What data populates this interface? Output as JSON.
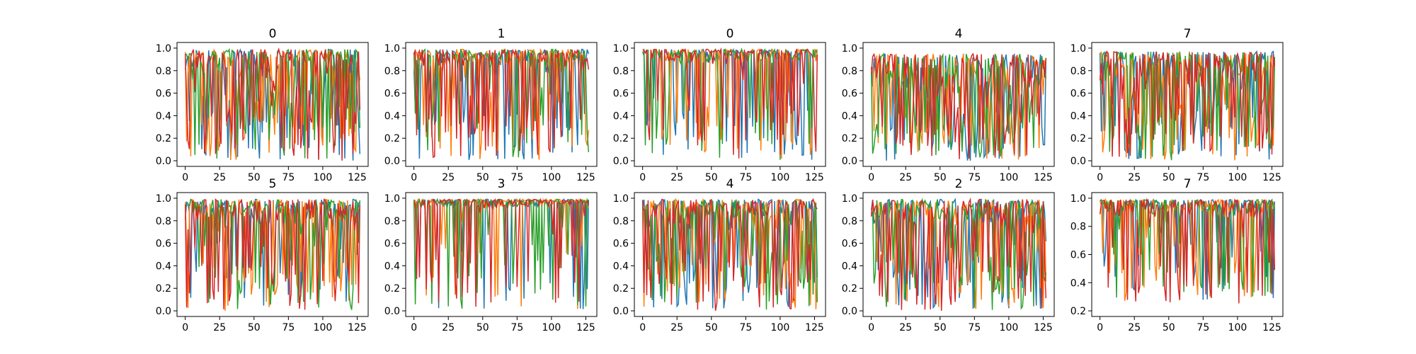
{
  "colors": {
    "series": [
      "#1f77b4",
      "#ff7f0e",
      "#2ca02c",
      "#d62728"
    ],
    "axes": "#000000",
    "background": "#ffffff"
  },
  "chart_data": [
    {
      "type": "line",
      "title": "0",
      "xlabel": "",
      "ylabel": "",
      "xlim": [
        -6,
        133
      ],
      "ylim": [
        -0.05,
        1.05
      ],
      "xticks": [
        0,
        25,
        50,
        75,
        100,
        125
      ],
      "yticks": [
        0.0,
        0.2,
        0.4,
        0.6,
        0.8,
        1.0
      ],
      "ytick_labels": [
        "0.0",
        "0.2",
        "0.4",
        "0.6",
        "0.8",
        "1.0"
      ],
      "grid": false,
      "legend": "none",
      "n_points": 128,
      "series_count": 4,
      "profile": {
        "low_min": 0.0,
        "high_level": 0.99,
        "dip_rate": 0.38,
        "noise": 0.35
      }
    },
    {
      "type": "line",
      "title": "1",
      "xlabel": "",
      "ylabel": "",
      "xlim": [
        -6,
        133
      ],
      "ylim": [
        -0.05,
        1.05
      ],
      "xticks": [
        0,
        25,
        50,
        75,
        100,
        125
      ],
      "yticks": [
        0.0,
        0.2,
        0.4,
        0.6,
        0.8,
        1.0
      ],
      "ytick_labels": [
        "0.0",
        "0.2",
        "0.4",
        "0.6",
        "0.8",
        "1.0"
      ],
      "grid": false,
      "legend": "none",
      "n_points": 128,
      "series_count": 4,
      "profile": {
        "low_min": 0.0,
        "high_level": 0.99,
        "dip_rate": 0.32,
        "noise": 0.25
      }
    },
    {
      "type": "line",
      "title": "0",
      "xlabel": "",
      "ylabel": "",
      "xlim": [
        -6,
        133
      ],
      "ylim": [
        -0.05,
        1.05
      ],
      "xticks": [
        0,
        25,
        50,
        75,
        100,
        125
      ],
      "yticks": [
        0.0,
        0.2,
        0.4,
        0.6,
        0.8,
        1.0
      ],
      "ytick_labels": [
        "0.0",
        "0.2",
        "0.4",
        "0.6",
        "0.8",
        "1.0"
      ],
      "grid": false,
      "legend": "none",
      "n_points": 128,
      "series_count": 4,
      "profile": {
        "low_min": 0.0,
        "high_level": 0.99,
        "dip_rate": 0.22,
        "noise": 0.15
      }
    },
    {
      "type": "line",
      "title": "4",
      "xlabel": "",
      "ylabel": "",
      "xlim": [
        -6,
        133
      ],
      "ylim": [
        -0.05,
        1.05
      ],
      "xticks": [
        0,
        25,
        50,
        75,
        100,
        125
      ],
      "yticks": [
        0.0,
        0.2,
        0.4,
        0.6,
        0.8,
        1.0
      ],
      "ytick_labels": [
        "0.0",
        "0.2",
        "0.4",
        "0.6",
        "0.8",
        "1.0"
      ],
      "grid": false,
      "legend": "none",
      "n_points": 128,
      "series_count": 4,
      "profile": {
        "low_min": 0.0,
        "high_level": 0.95,
        "dip_rate": 0.42,
        "noise": 0.4
      }
    },
    {
      "type": "line",
      "title": "7",
      "xlabel": "",
      "ylabel": "",
      "xlim": [
        -6,
        133
      ],
      "ylim": [
        -0.05,
        1.05
      ],
      "xticks": [
        0,
        25,
        50,
        75,
        100,
        125
      ],
      "yticks": [
        0.0,
        0.2,
        0.4,
        0.6,
        0.8,
        1.0
      ],
      "ytick_labels": [
        "0.0",
        "0.2",
        "0.4",
        "0.6",
        "0.8",
        "1.0"
      ],
      "grid": false,
      "legend": "none",
      "n_points": 128,
      "series_count": 4,
      "profile": {
        "low_min": 0.0,
        "high_level": 0.97,
        "dip_rate": 0.45,
        "noise": 0.4
      }
    },
    {
      "type": "line",
      "title": "5",
      "xlabel": "",
      "ylabel": "",
      "xlim": [
        -6,
        133
      ],
      "ylim": [
        -0.05,
        1.05
      ],
      "xticks": [
        0,
        25,
        50,
        75,
        100,
        125
      ],
      "yticks": [
        0.0,
        0.2,
        0.4,
        0.6,
        0.8,
        1.0
      ],
      "ytick_labels": [
        "0.0",
        "0.2",
        "0.4",
        "0.6",
        "0.8",
        "1.0"
      ],
      "grid": false,
      "legend": "none",
      "n_points": 128,
      "series_count": 4,
      "profile": {
        "low_min": 0.0,
        "high_level": 0.99,
        "dip_rate": 0.36,
        "noise": 0.3
      }
    },
    {
      "type": "line",
      "title": "3",
      "xlabel": "",
      "ylabel": "",
      "xlim": [
        -6,
        133
      ],
      "ylim": [
        -0.05,
        1.05
      ],
      "xticks": [
        0,
        25,
        50,
        75,
        100,
        125
      ],
      "yticks": [
        0.0,
        0.2,
        0.4,
        0.6,
        0.8,
        1.0
      ],
      "ytick_labels": [
        "0.0",
        "0.2",
        "0.4",
        "0.6",
        "0.8",
        "1.0"
      ],
      "grid": false,
      "legend": "none",
      "n_points": 128,
      "series_count": 4,
      "profile": {
        "low_min": 0.0,
        "high_level": 0.99,
        "dip_rate": 0.2,
        "noise": 0.1
      }
    },
    {
      "type": "line",
      "title": "4",
      "xlabel": "",
      "ylabel": "",
      "xlim": [
        -6,
        133
      ],
      "ylim": [
        -0.05,
        1.05
      ],
      "xticks": [
        0,
        25,
        50,
        75,
        100,
        125
      ],
      "yticks": [
        0.0,
        0.2,
        0.4,
        0.6,
        0.8,
        1.0
      ],
      "ytick_labels": [
        "0.0",
        "0.2",
        "0.4",
        "0.6",
        "0.8",
        "1.0"
      ],
      "grid": false,
      "legend": "none",
      "n_points": 128,
      "series_count": 4,
      "profile": {
        "low_min": 0.0,
        "high_level": 0.99,
        "dip_rate": 0.4,
        "noise": 0.3
      }
    },
    {
      "type": "line",
      "title": "2",
      "xlabel": "",
      "ylabel": "",
      "xlim": [
        -6,
        133
      ],
      "ylim": [
        -0.05,
        1.05
      ],
      "xticks": [
        0,
        25,
        50,
        75,
        100,
        125
      ],
      "yticks": [
        0.0,
        0.2,
        0.4,
        0.6,
        0.8,
        1.0
      ],
      "ytick_labels": [
        "0.0",
        "0.2",
        "0.4",
        "0.6",
        "0.8",
        "1.0"
      ],
      "grid": false,
      "legend": "none",
      "n_points": 128,
      "series_count": 4,
      "profile": {
        "low_min": 0.0,
        "high_level": 0.99,
        "dip_rate": 0.35,
        "noise": 0.3
      }
    },
    {
      "type": "line",
      "title": "7",
      "xlabel": "",
      "ylabel": "",
      "xlim": [
        -6,
        133
      ],
      "ylim": [
        0.16,
        1.04
      ],
      "xticks": [
        0,
        25,
        50,
        75,
        100,
        125
      ],
      "yticks": [
        0.2,
        0.4,
        0.6,
        0.8,
        1.0
      ],
      "ytick_labels": [
        "0.2",
        "0.4",
        "0.6",
        "0.8",
        "1.0"
      ],
      "grid": false,
      "legend": "none",
      "n_points": 128,
      "series_count": 4,
      "profile": {
        "low_min": 0.25,
        "high_level": 0.99,
        "dip_rate": 0.28,
        "noise": 0.15
      }
    }
  ]
}
